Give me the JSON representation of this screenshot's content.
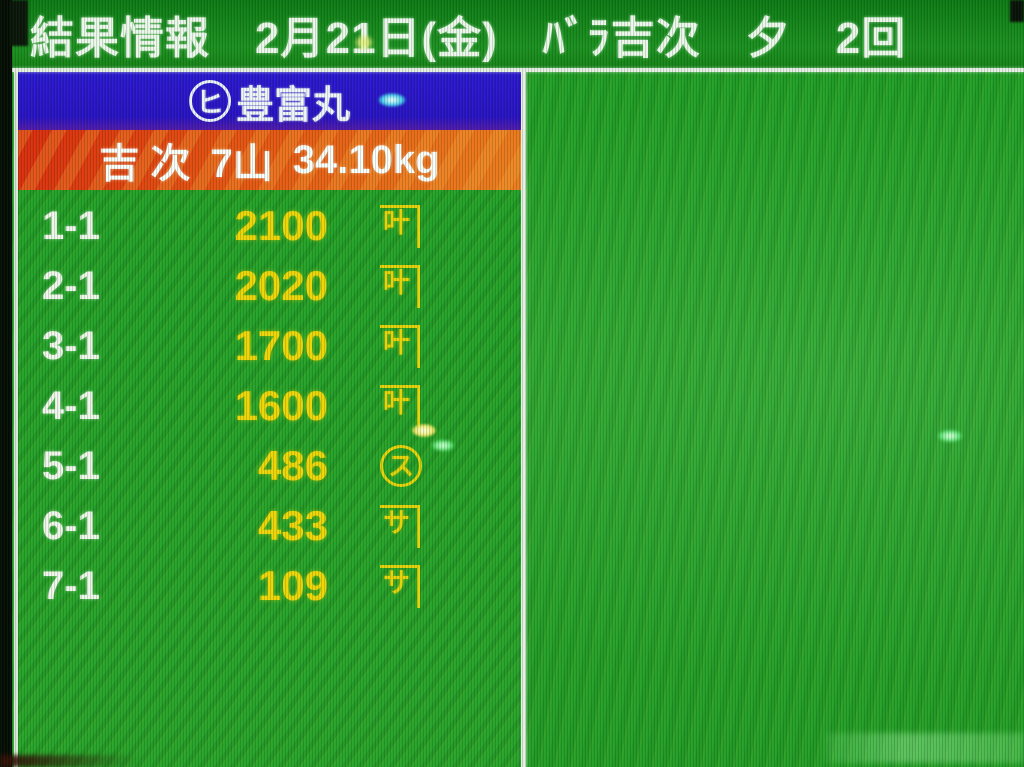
{
  "header": {
    "title": "結果情報　2月21日(金)　ﾊﾞﾗ吉次　夕　2回"
  },
  "panel": {
    "boat": {
      "circled_mark": "ヒ",
      "name": "豊富丸"
    },
    "summary": {
      "species": "吉 次",
      "lots": "7山",
      "weight": "34.10kg"
    },
    "rows": [
      {
        "label": "1-1",
        "value": "2100",
        "mark": {
          "glyph": "叶",
          "frame": "kane"
        }
      },
      {
        "label": "2-1",
        "value": "2020",
        "mark": {
          "glyph": "叶",
          "frame": "kane"
        }
      },
      {
        "label": "3-1",
        "value": "1700",
        "mark": {
          "glyph": "叶",
          "frame": "kane"
        }
      },
      {
        "label": "4-1",
        "value": "1600",
        "mark": {
          "glyph": "叶",
          "frame": "kane"
        }
      },
      {
        "label": "5-1",
        "value": "486",
        "mark": {
          "glyph": "ス",
          "frame": "circle"
        }
      },
      {
        "label": "6-1",
        "value": "433",
        "mark": {
          "glyph": "サ",
          "frame": "kane"
        }
      },
      {
        "label": "7-1",
        "value": "109",
        "mark": {
          "glyph": "サ",
          "frame": "kane"
        }
      }
    ]
  },
  "colors": {
    "background_green": "#2aa42d",
    "header_green": "#1d9022",
    "boat_bar_blue": "#2a10c8",
    "summary_bar_orange": "#ea5414",
    "price_yellow": "#f1d609",
    "label_white": "#f3f7ef",
    "border_white": "#e9f0e9"
  }
}
